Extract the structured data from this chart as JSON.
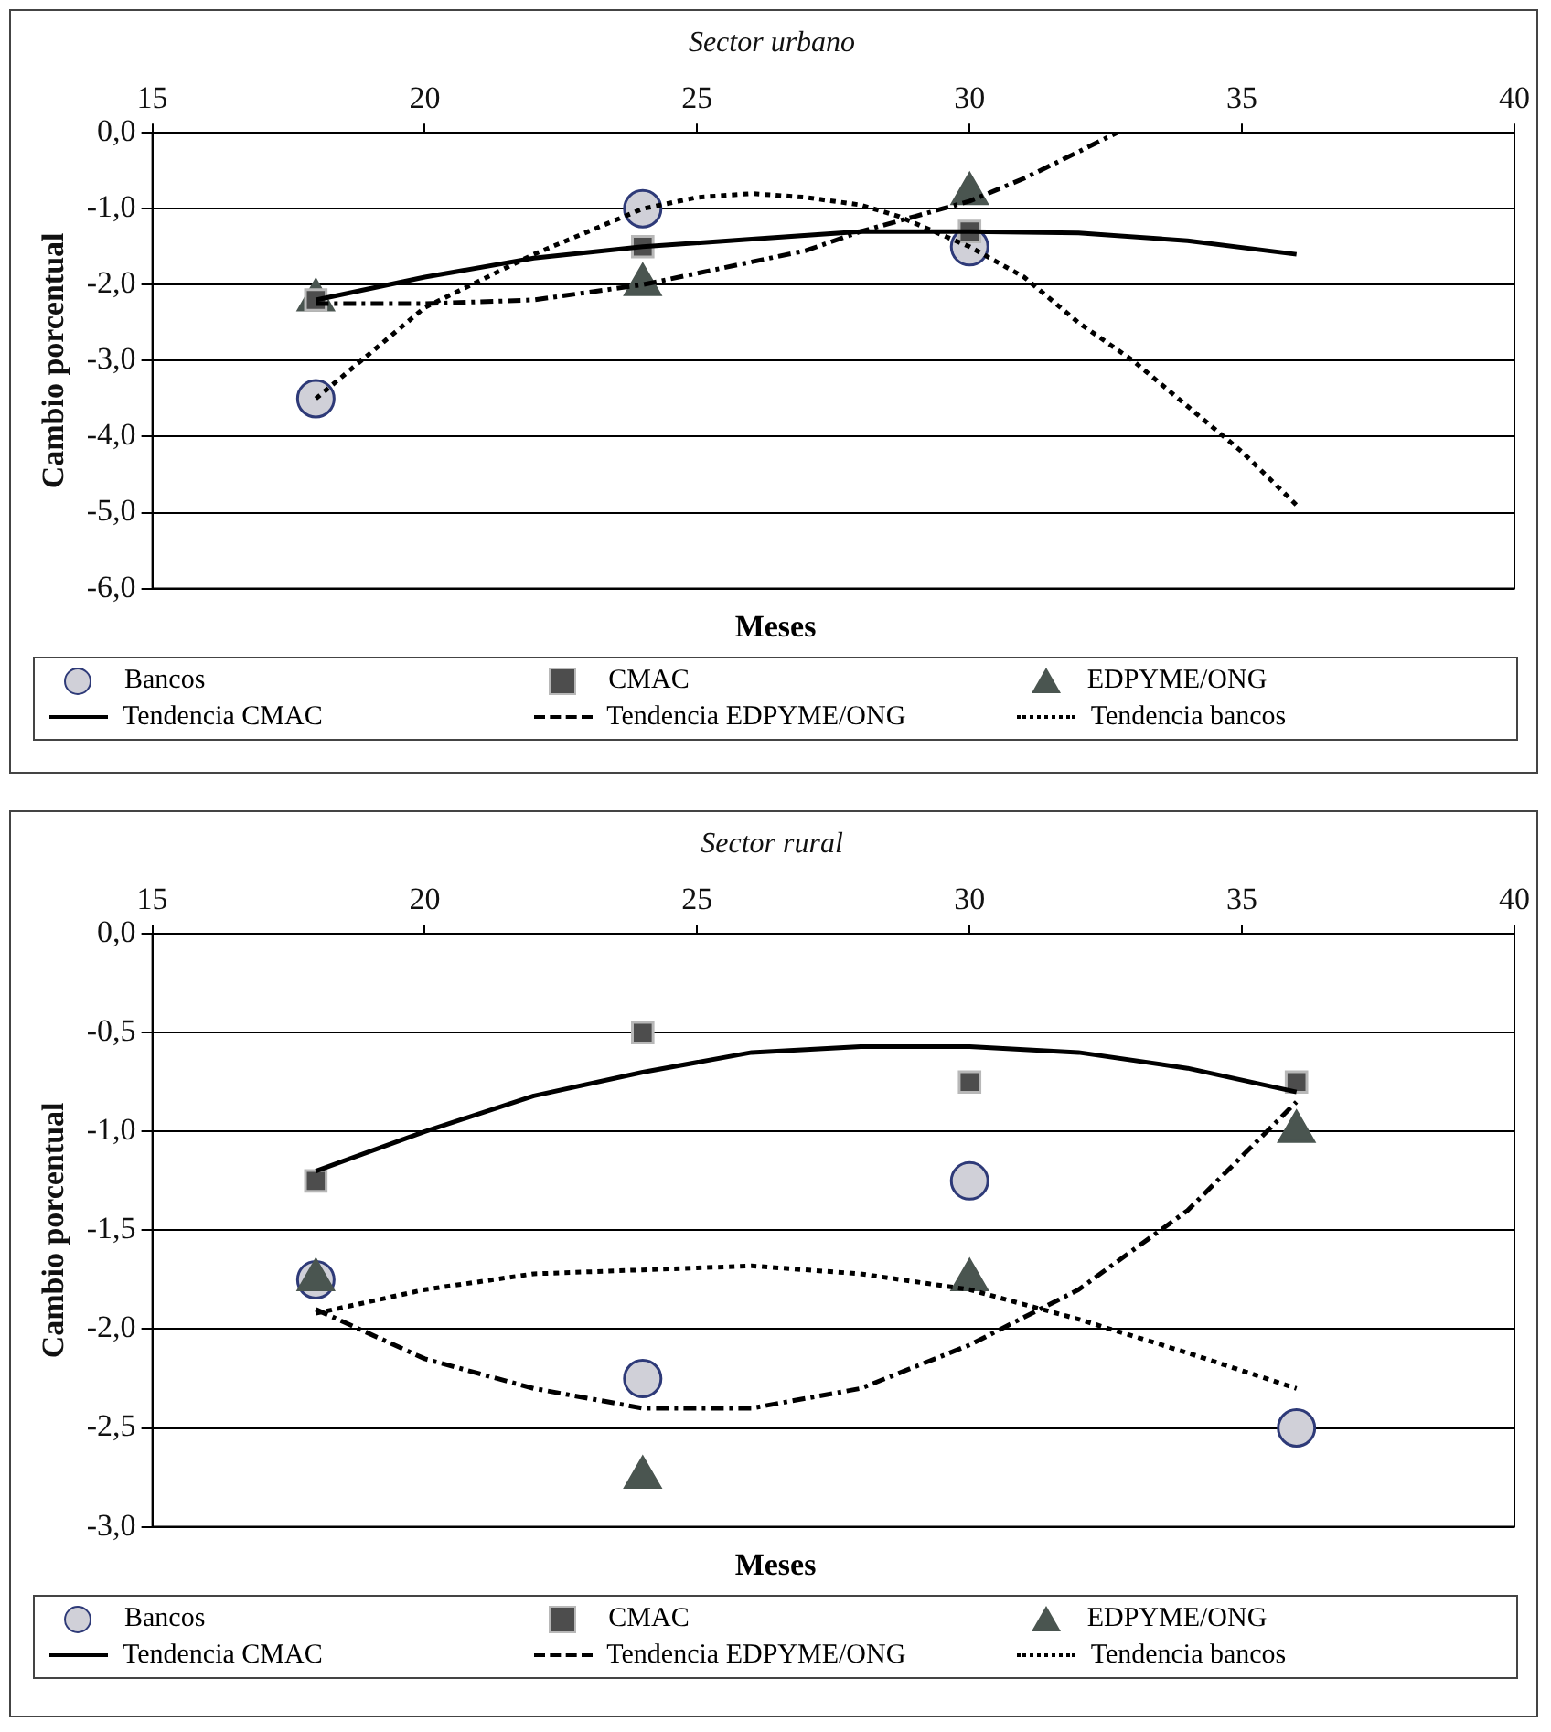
{
  "chart_data": [
    {
      "type": "scatter",
      "title": "Sector urbano",
      "xlabel": "Meses",
      "ylabel": "Cambio porcentual",
      "xlim": [
        15,
        40
      ],
      "xticks": [
        15,
        20,
        25,
        30,
        35,
        40
      ],
      "ylim": [
        -6,
        0
      ],
      "yticks": [
        {
          "value": 0,
          "label": "0,0"
        },
        {
          "value": -1,
          "label": "-1,0"
        },
        {
          "value": -2,
          "label": "-2,0"
        },
        {
          "value": -3,
          "label": "-3,0"
        },
        {
          "value": -4,
          "label": "-4,0"
        },
        {
          "value": -5,
          "label": "-5,0"
        },
        {
          "value": -6,
          "label": "-6,0"
        }
      ],
      "grid": "y",
      "legend": "bottom",
      "series": [
        {
          "name": "Bancos",
          "type": "scatter",
          "marker": "circle",
          "color": "#d0d0d8",
          "x": [
            18,
            24,
            30
          ],
          "values": [
            -3.5,
            -1.0,
            -1.5
          ]
        },
        {
          "name": "CMAC",
          "type": "scatter",
          "marker": "square",
          "color": "#4d4d4d",
          "x": [
            18,
            24,
            30
          ],
          "values": [
            -2.2,
            -1.5,
            -1.3
          ]
        },
        {
          "name": "EDPYME/ONG",
          "type": "scatter",
          "marker": "triangle",
          "color": "#4a5550",
          "x": [
            18,
            24,
            30
          ],
          "values": [
            -2.2,
            -2.0,
            -0.8
          ]
        },
        {
          "name": "Tendencia CMAC",
          "type": "line",
          "marker": "none",
          "line_style": "solid",
          "color": "#000000",
          "x": [
            18,
            20,
            22,
            24,
            26,
            28,
            30,
            32,
            34,
            36
          ],
          "values": [
            -2.2,
            -1.9,
            -1.65,
            -1.5,
            -1.4,
            -1.3,
            -1.3,
            -1.32,
            -1.42,
            -1.6
          ]
        },
        {
          "name": "Tendencia EDPYME/ONG",
          "type": "line",
          "marker": "none",
          "line_style": "dashed",
          "color": "#000000",
          "x": [
            18,
            20,
            22,
            24,
            26,
            27,
            28,
            29,
            30,
            31,
            32,
            32.7
          ],
          "values": [
            -2.25,
            -2.25,
            -2.2,
            -2.0,
            -1.7,
            -1.55,
            -1.3,
            -1.1,
            -0.9,
            -0.6,
            -0.25,
            0
          ]
        },
        {
          "name": "Tendencia bancos",
          "type": "line",
          "marker": "none",
          "line_style": "dotted",
          "color": "#000000",
          "x": [
            18,
            19,
            20,
            22,
            24,
            25,
            26,
            27,
            28,
            28.7,
            30,
            31,
            32,
            33,
            34,
            35,
            36
          ],
          "values": [
            -3.5,
            -2.9,
            -2.3,
            -1.6,
            -1.0,
            -0.85,
            -0.8,
            -0.85,
            -0.95,
            -1.1,
            -1.5,
            -1.9,
            -2.5,
            -3.0,
            -3.6,
            -4.2,
            -4.9
          ]
        }
      ]
    },
    {
      "type": "scatter",
      "title": "Sector rural",
      "xlabel": "Meses",
      "ylabel": "Cambio porcentual",
      "xlim": [
        15,
        40
      ],
      "xticks": [
        15,
        20,
        25,
        30,
        35,
        40
      ],
      "ylim": [
        -3,
        0
      ],
      "yticks": [
        {
          "value": 0,
          "label": "0,0"
        },
        {
          "value": -0.5,
          "label": "-0,5"
        },
        {
          "value": -1,
          "label": "-1,0"
        },
        {
          "value": -1.5,
          "label": "-1,5"
        },
        {
          "value": -2,
          "label": "-2,0"
        },
        {
          "value": -2.5,
          "label": "-2,5"
        },
        {
          "value": -3,
          "label": "-3,0"
        }
      ],
      "grid": "y",
      "legend": "bottom",
      "series": [
        {
          "name": "Bancos",
          "type": "scatter",
          "marker": "circle",
          "color": "#d0d0d8",
          "x": [
            18,
            24,
            30,
            36
          ],
          "values": [
            -1.75,
            -2.25,
            -1.25,
            -2.5
          ]
        },
        {
          "name": "CMAC",
          "type": "scatter",
          "marker": "square",
          "color": "#4d4d4d",
          "x": [
            18,
            24,
            30,
            36
          ],
          "values": [
            -1.25,
            -0.5,
            -0.75,
            -0.75
          ]
        },
        {
          "name": "EDPYME/ONG",
          "type": "scatter",
          "marker": "triangle",
          "color": "#4a5550",
          "x": [
            18,
            24,
            30,
            36
          ],
          "values": [
            -1.75,
            -2.75,
            -1.75,
            -1.0
          ]
        },
        {
          "name": "Tendencia CMAC",
          "type": "line",
          "marker": "none",
          "line_style": "solid",
          "color": "#000000",
          "x": [
            18,
            20,
            22,
            24,
            26,
            28,
            30,
            32,
            34,
            36
          ],
          "values": [
            -1.2,
            -1.0,
            -0.82,
            -0.7,
            -0.6,
            -0.57,
            -0.57,
            -0.6,
            -0.68,
            -0.8
          ]
        },
        {
          "name": "Tendencia EDPYME/ONG",
          "type": "line",
          "marker": "none",
          "line_style": "dashed",
          "color": "#000000",
          "x": [
            18,
            20,
            22,
            24,
            26,
            28,
            30,
            32,
            34,
            36
          ],
          "values": [
            -1.9,
            -2.15,
            -2.3,
            -2.4,
            -2.4,
            -2.3,
            -2.08,
            -1.8,
            -1.4,
            -0.85
          ]
        },
        {
          "name": "Tendencia bancos",
          "type": "line",
          "marker": "none",
          "line_style": "dotted",
          "color": "#000000",
          "x": [
            18,
            20,
            22,
            24,
            26,
            28,
            30,
            32,
            34,
            36
          ],
          "values": [
            -1.92,
            -1.8,
            -1.72,
            -1.7,
            -1.68,
            -1.72,
            -1.8,
            -1.95,
            -2.12,
            -2.3
          ]
        }
      ]
    }
  ]
}
